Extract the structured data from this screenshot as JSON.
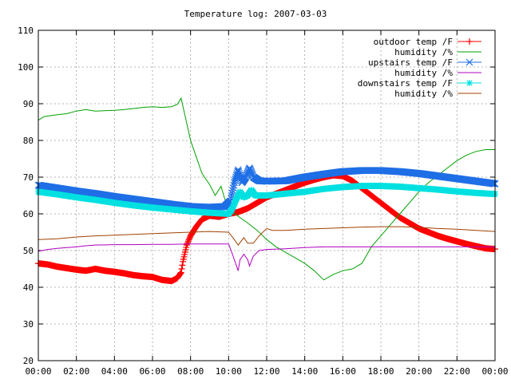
{
  "chart_data": {
    "type": "line",
    "title": "Temperature log: 2007-03-03",
    "xlabel": "",
    "ylabel": "",
    "xlim": [
      "00:00",
      "24:00"
    ],
    "ylim": [
      20,
      110
    ],
    "grid": true,
    "legend_position": "top-right",
    "x_ticks": [
      "00:00",
      "02:00",
      "04:00",
      "06:00",
      "08:00",
      "10:00",
      "12:00",
      "14:00",
      "16:00",
      "18:00",
      "20:00",
      "22:00",
      "00:00"
    ],
    "y_ticks": [
      "20",
      "30",
      "40",
      "50",
      "60",
      "70",
      "80",
      "90",
      "100",
      "110"
    ],
    "series": [
      {
        "name": "outdoor temp /F",
        "color": "#ff0000",
        "marker": "plus",
        "points": [
          [
            0,
            46.5
          ],
          [
            0.5,
            46.2
          ],
          [
            1,
            45.6
          ],
          [
            1.5,
            45.2
          ],
          [
            2,
            44.8
          ],
          [
            2.5,
            44.5
          ],
          [
            3,
            45.0
          ],
          [
            3.5,
            44.5
          ],
          [
            4,
            44.2
          ],
          [
            4.5,
            43.8
          ],
          [
            5,
            43.3
          ],
          [
            5.5,
            43.0
          ],
          [
            6,
            42.8
          ],
          [
            6.5,
            42.0
          ],
          [
            7,
            41.7
          ],
          [
            7.3,
            42.5
          ],
          [
            7.5,
            44.0
          ],
          [
            7.6,
            47.0
          ],
          [
            7.8,
            51.5
          ],
          [
            8,
            54.0
          ],
          [
            8.3,
            56.5
          ],
          [
            8.6,
            58.5
          ],
          [
            9,
            59.5
          ],
          [
            9.5,
            59.2
          ],
          [
            10,
            60.0
          ],
          [
            10.5,
            60.5
          ],
          [
            11,
            61.5
          ],
          [
            11.5,
            63.0
          ],
          [
            12,
            64.5
          ],
          [
            12.5,
            65.5
          ],
          [
            13,
            66.5
          ],
          [
            13.5,
            67.5
          ],
          [
            14,
            68.5
          ],
          [
            14.5,
            69.3
          ],
          [
            15,
            70.0
          ],
          [
            15.5,
            70.5
          ],
          [
            16,
            70.3
          ],
          [
            16.5,
            69.0
          ],
          [
            17,
            67.0
          ],
          [
            17.5,
            65.0
          ],
          [
            18,
            63.0
          ],
          [
            18.5,
            61.0
          ],
          [
            19,
            59.0
          ],
          [
            19.5,
            57.5
          ],
          [
            20,
            56.0
          ],
          [
            20.5,
            55.0
          ],
          [
            21,
            54.0
          ],
          [
            21.5,
            53.2
          ],
          [
            22,
            52.5
          ],
          [
            22.5,
            51.8
          ],
          [
            23,
            51.2
          ],
          [
            23.5,
            50.6
          ],
          [
            24,
            50.4
          ]
        ]
      },
      {
        "name": "humidity /%",
        "color": "#00a000",
        "marker": "none",
        "points": [
          [
            0,
            85.5
          ],
          [
            0.3,
            86.5
          ],
          [
            1,
            87.0
          ],
          [
            1.5,
            87.3
          ],
          [
            2,
            88.0
          ],
          [
            2.5,
            88.4
          ],
          [
            3,
            88.0
          ],
          [
            4,
            88.2
          ],
          [
            4.5,
            88.4
          ],
          [
            5,
            88.7
          ],
          [
            5.5,
            89.0
          ],
          [
            6,
            89.2
          ],
          [
            6.5,
            89.0
          ],
          [
            7,
            89.2
          ],
          [
            7.3,
            89.8
          ],
          [
            7.5,
            91.5
          ],
          [
            7.7,
            87.0
          ],
          [
            8,
            80.0
          ],
          [
            8.3,
            75.5
          ],
          [
            8.6,
            71.0
          ],
          [
            9,
            68.0
          ],
          [
            9.3,
            65.0
          ],
          [
            9.6,
            67.5
          ],
          [
            9.8,
            64.0
          ],
          [
            10,
            62.0
          ],
          [
            10.2,
            60.5
          ],
          [
            10.6,
            59.0
          ],
          [
            11,
            57.5
          ],
          [
            11.5,
            55.5
          ],
          [
            12,
            53.0
          ],
          [
            12.5,
            51.0
          ],
          [
            13,
            49.5
          ],
          [
            13.5,
            48.0
          ],
          [
            14,
            46.5
          ],
          [
            14.5,
            44.5
          ],
          [
            15,
            42.0
          ],
          [
            15.5,
            43.5
          ],
          [
            16,
            44.5
          ],
          [
            16.5,
            45.0
          ],
          [
            17,
            46.5
          ],
          [
            17.5,
            51.0
          ],
          [
            18,
            54.0
          ],
          [
            18.5,
            57.0
          ],
          [
            19,
            60.0
          ],
          [
            19.5,
            63.0
          ],
          [
            20,
            66.0
          ],
          [
            20.5,
            68.5
          ],
          [
            21,
            70.5
          ],
          [
            21.5,
            72.5
          ],
          [
            22,
            74.5
          ],
          [
            22.5,
            76.0
          ],
          [
            23,
            77.0
          ],
          [
            23.5,
            77.5
          ],
          [
            24,
            77.5
          ]
        ]
      },
      {
        "name": "upstairs temp /F",
        "color": "#1e6ee6",
        "marker": "cross",
        "points": [
          [
            0,
            67.8
          ],
          [
            1,
            67.0
          ],
          [
            2,
            66.2
          ],
          [
            3,
            65.5
          ],
          [
            4,
            64.7
          ],
          [
            5,
            64.0
          ],
          [
            6,
            63.3
          ],
          [
            7,
            62.6
          ],
          [
            8,
            62.0
          ],
          [
            9,
            61.8
          ],
          [
            9.8,
            62.0
          ],
          [
            10.1,
            63.5
          ],
          [
            10.3,
            68.5
          ],
          [
            10.5,
            72.0
          ],
          [
            10.7,
            68.5
          ],
          [
            10.9,
            70.0
          ],
          [
            11.1,
            72.5
          ],
          [
            11.3,
            70.0
          ],
          [
            11.6,
            69.0
          ],
          [
            12,
            68.9
          ],
          [
            13,
            69.0
          ],
          [
            14,
            70.0
          ],
          [
            15,
            70.8
          ],
          [
            16,
            71.5
          ],
          [
            17,
            71.8
          ],
          [
            18,
            71.8
          ],
          [
            19,
            71.5
          ],
          [
            20,
            71.0
          ],
          [
            21,
            70.3
          ],
          [
            22,
            69.6
          ],
          [
            23,
            68.9
          ],
          [
            24,
            68.2
          ]
        ]
      },
      {
        "name": "humidity /%",
        "color": "#b000c0",
        "marker": "none",
        "points": [
          [
            0,
            49.8
          ],
          [
            0.5,
            50.3
          ],
          [
            1,
            50.6
          ],
          [
            2,
            51.0
          ],
          [
            2.5,
            51.3
          ],
          [
            3,
            51.5
          ],
          [
            4,
            51.6
          ],
          [
            5,
            51.6
          ],
          [
            6,
            51.7
          ],
          [
            7,
            51.7
          ],
          [
            8,
            51.8
          ],
          [
            9,
            51.8
          ],
          [
            10,
            51.8
          ],
          [
            10.2,
            49.0
          ],
          [
            10.4,
            46.0
          ],
          [
            10.5,
            44.5
          ],
          [
            10.6,
            47.5
          ],
          [
            10.8,
            49.0
          ],
          [
            11,
            47.5
          ],
          [
            11.1,
            45.8
          ],
          [
            11.3,
            48.5
          ],
          [
            11.6,
            50.0
          ],
          [
            12,
            50.3
          ],
          [
            13,
            50.5
          ],
          [
            14,
            50.8
          ],
          [
            15,
            51.0
          ],
          [
            16,
            51.0
          ],
          [
            17,
            51.0
          ],
          [
            18,
            51.0
          ],
          [
            19,
            51.0
          ],
          [
            20,
            51.0
          ],
          [
            21,
            51.0
          ],
          [
            22,
            51.0
          ],
          [
            23,
            51.0
          ],
          [
            24,
            51.0
          ]
        ]
      },
      {
        "name": "downstairs temp /F",
        "color": "#00e0e0",
        "marker": "star",
        "points": [
          [
            0,
            66.0
          ],
          [
            1,
            65.3
          ],
          [
            2,
            64.5
          ],
          [
            3,
            63.8
          ],
          [
            4,
            63.0
          ],
          [
            5,
            62.3
          ],
          [
            6,
            61.7
          ],
          [
            7,
            61.2
          ],
          [
            8,
            60.7
          ],
          [
            9,
            60.3
          ],
          [
            10,
            60.0
          ],
          [
            10.2,
            61.5
          ],
          [
            10.4,
            64.0
          ],
          [
            10.6,
            66.0
          ],
          [
            10.8,
            64.5
          ],
          [
            11,
            65.0
          ],
          [
            11.2,
            66.5
          ],
          [
            11.4,
            65.0
          ],
          [
            12,
            65.0
          ],
          [
            13,
            65.5
          ],
          [
            14,
            66.0
          ],
          [
            15,
            66.8
          ],
          [
            16,
            67.3
          ],
          [
            17,
            67.6
          ],
          [
            18,
            67.6
          ],
          [
            19,
            67.4
          ],
          [
            20,
            67.0
          ],
          [
            21,
            66.6
          ],
          [
            22,
            66.1
          ],
          [
            23,
            65.7
          ],
          [
            24,
            65.4
          ]
        ]
      },
      {
        "name": "humidity /%",
        "color": "#a04000",
        "marker": "none",
        "points": [
          [
            0,
            53.0
          ],
          [
            1,
            53.2
          ],
          [
            2,
            53.7
          ],
          [
            3,
            54.0
          ],
          [
            4,
            54.2
          ],
          [
            5,
            54.4
          ],
          [
            6,
            54.6
          ],
          [
            7,
            54.8
          ],
          [
            8,
            55.0
          ],
          [
            9,
            55.2
          ],
          [
            10,
            55.0
          ],
          [
            10.3,
            53.0
          ],
          [
            10.5,
            51.5
          ],
          [
            10.8,
            53.5
          ],
          [
            11,
            52.0
          ],
          [
            11.3,
            52.0
          ],
          [
            11.6,
            54.0
          ],
          [
            12,
            56.0
          ],
          [
            12.3,
            55.5
          ],
          [
            13,
            55.5
          ],
          [
            14,
            55.8
          ],
          [
            15,
            56.0
          ],
          [
            16,
            56.2
          ],
          [
            17,
            56.4
          ],
          [
            18,
            56.5
          ],
          [
            19,
            56.5
          ],
          [
            20,
            56.3
          ],
          [
            21,
            56.0
          ],
          [
            22,
            55.8
          ],
          [
            23,
            55.5
          ],
          [
            24,
            55.2
          ]
        ]
      }
    ]
  }
}
